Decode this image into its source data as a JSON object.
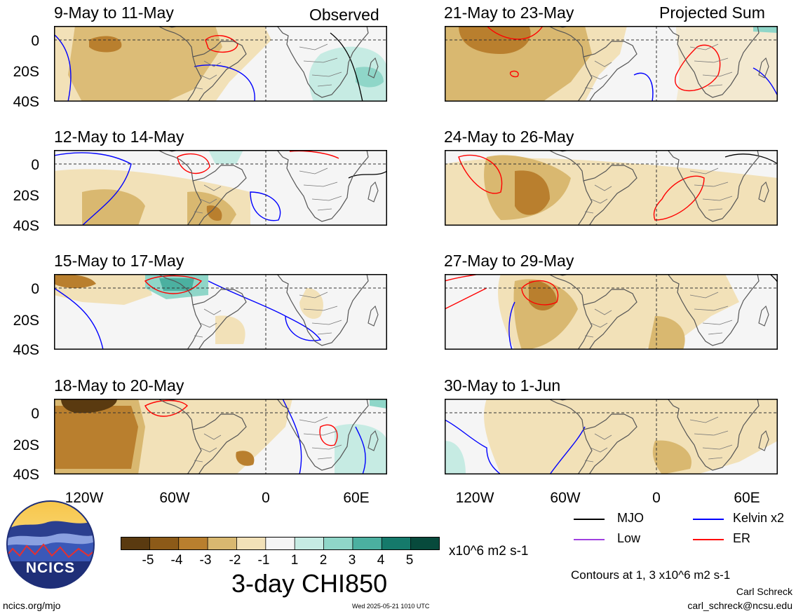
{
  "header": {
    "observed_label": "Observed",
    "projected_label": "Projected Sum"
  },
  "panels": [
    {
      "id": "p1",
      "title": "9-May to 11-May",
      "column": "observed"
    },
    {
      "id": "p2",
      "title": "12-May to 14-May",
      "column": "observed"
    },
    {
      "id": "p3",
      "title": "15-May to 17-May",
      "column": "observed"
    },
    {
      "id": "p4",
      "title": "18-May to 20-May",
      "column": "observed"
    },
    {
      "id": "p5",
      "title": "21-May to 23-May",
      "column": "projected"
    },
    {
      "id": "p6",
      "title": "24-May to 26-May",
      "column": "projected"
    },
    {
      "id": "p7",
      "title": "27-May to 29-May",
      "column": "projected"
    },
    {
      "id": "p8",
      "title": "30-May to 1-Jun",
      "column": "projected"
    }
  ],
  "axes": {
    "y_ticks": [
      "0",
      "20S",
      "40S"
    ],
    "x_ticks": [
      "120W",
      "60W",
      "0",
      "60E"
    ]
  },
  "colorbar": {
    "tick_labels": [
      "-5",
      "-4",
      "-3",
      "-2",
      "-1",
      "1",
      "2",
      "3",
      "4",
      "5"
    ],
    "colors": [
      "#5a3a10",
      "#8c5a18",
      "#b97f2e",
      "#d9b870",
      "#f2e1b8",
      "#f5f5f5",
      "#c6ebe3",
      "#8fd6c8",
      "#4bb0a0",
      "#157a6b",
      "#074a3c"
    ],
    "units": "x10^6 m2 s-1",
    "title": "3-day CHI850"
  },
  "legend": {
    "mjo": {
      "label": "MJO",
      "color": "#000000"
    },
    "kelvin": {
      "label": "Kelvin x2",
      "color": "#0000ff"
    },
    "low": {
      "label": "Low",
      "color": "#a040e0"
    },
    "er": {
      "label": "ER",
      "color": "#ff0000"
    },
    "contours_note": "Contours at 1, 3 x10^6 m2 s-1"
  },
  "credits": {
    "author": "Carl Schreck",
    "email": "carl_schreck@ncsu.edu",
    "site": "ncics.org/mjo",
    "timestamp": "Wed 2025-05-21 1010 UTC",
    "logo_text": "NCICS"
  }
}
